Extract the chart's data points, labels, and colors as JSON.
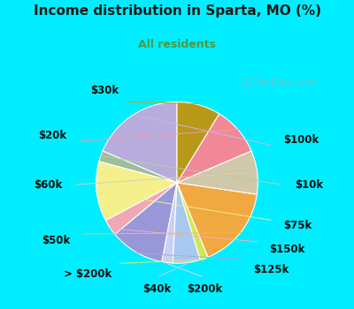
{
  "title": "Income distribution in Sparta, MO (%)",
  "subtitle": "All residents",
  "title_color": "#1a1a1a",
  "subtitle_color": "#4a9a4a",
  "bg_cyan": "#00EEFF",
  "bg_inner": "#e0f5ee",
  "watermark": "City-Data.com",
  "labels": [
    "$100k",
    "$10k",
    "$75k",
    "$150k",
    "$125k",
    "$200k",
    "$40k",
    "> $200k",
    "$50k",
    "$60k",
    "$20k",
    "$30k"
  ],
  "sizes": [
    17,
    2,
    11,
    3,
    10,
    2,
    5,
    1.5,
    15,
    8,
    9,
    8
  ],
  "colors": [
    "#b8acdc",
    "#9dbe98",
    "#f5f08c",
    "#f0a8b5",
    "#9898d8",
    "#c8d0f5",
    "#a8c8f0",
    "#d0e858",
    "#f0a840",
    "#d0c8a8",
    "#f08898",
    "#b89818"
  ],
  "line_colors": [
    "#c8b8e8",
    "#b0d0a8",
    "#f0ee90",
    "#f5b0bc",
    "#a8a8e0",
    "#d0d8f8",
    "#b0d0f8",
    "#d8f060",
    "#f8b848",
    "#d8d0b0",
    "#f898a8",
    "#c0a828"
  ],
  "startangle": 90,
  "label_fontsize": 8.5
}
